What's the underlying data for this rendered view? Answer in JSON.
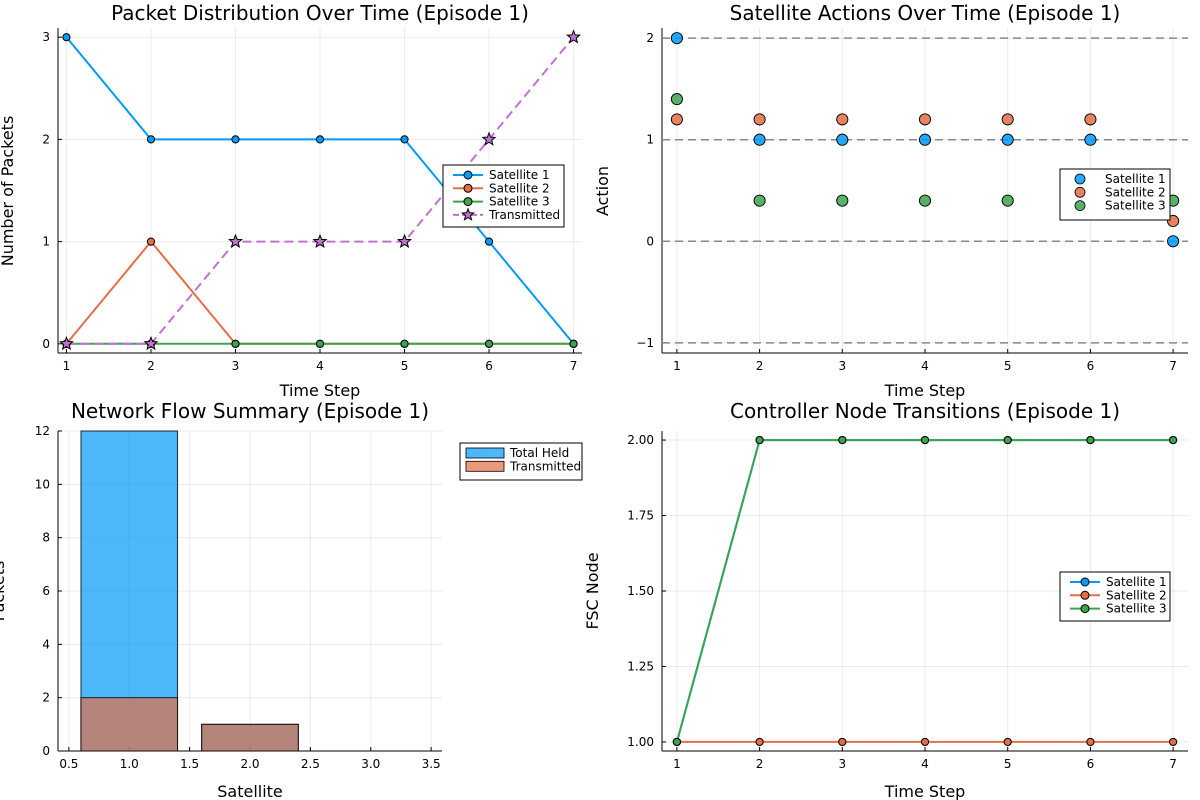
{
  "chart_data": [
    {
      "type": "line",
      "title": "Packet Distribution Over Time (Episode 1)",
      "xlabel": "Time Step",
      "ylabel": "Number of Packets",
      "x": [
        1,
        2,
        3,
        4,
        5,
        6,
        7
      ],
      "xlim": [
        0.9,
        7.1
      ],
      "ylim": [
        -0.09,
        3.09
      ],
      "xticks": [
        "1",
        "2",
        "3",
        "4",
        "5",
        "6",
        "7"
      ],
      "yticks": [
        "0",
        "1",
        "2",
        "3"
      ],
      "grid": true,
      "legend_position": "right",
      "series": [
        {
          "name": "Satellite 1",
          "values": [
            3,
            2,
            2,
            2,
            2,
            1,
            0
          ],
          "color": "#009af9",
          "marker": "circle",
          "dash": false
        },
        {
          "name": "Satellite 2",
          "values": [
            0,
            1,
            0,
            0,
            0,
            0,
            0
          ],
          "color": "#e26f46",
          "marker": "circle",
          "dash": false
        },
        {
          "name": "Satellite 3",
          "values": [
            0,
            0,
            0,
            0,
            0,
            0,
            0
          ],
          "color": "#3da44d",
          "marker": "circle",
          "dash": false
        },
        {
          "name": "Transmitted",
          "values": [
            0,
            0,
            1,
            1,
            1,
            2,
            3
          ],
          "color": "#c271d2",
          "marker": "star",
          "dash": true
        }
      ]
    },
    {
      "type": "scatter",
      "title": "Satellite Actions Over Time (Episode 1)",
      "xlabel": "Time Step",
      "ylabel": "Action",
      "xlim": [
        0.82,
        7.18
      ],
      "ylim": [
        -1.1,
        2.1
      ],
      "xticks": [
        "1",
        "2",
        "3",
        "4",
        "5",
        "6",
        "7"
      ],
      "yticks": [
        "−1",
        "0",
        "1",
        "2"
      ],
      "hlines": [
        -1,
        0,
        1,
        2
      ],
      "grid": true,
      "legend_position": "right",
      "series": [
        {
          "name": "Satellite 1",
          "color": "#009af9",
          "points": [
            [
              1,
              2
            ],
            [
              2,
              1
            ],
            [
              3,
              1
            ],
            [
              4,
              1
            ],
            [
              5,
              1
            ],
            [
              6,
              1
            ],
            [
              7,
              0
            ]
          ]
        },
        {
          "name": "Satellite 2",
          "color": "#e26f46",
          "points": [
            [
              1,
              1.2
            ],
            [
              2,
              1.2
            ],
            [
              3,
              1.2
            ],
            [
              4,
              1.2
            ],
            [
              5,
              1.2
            ],
            [
              6,
              1.2
            ],
            [
              7,
              0.2
            ]
          ]
        },
        {
          "name": "Satellite 3",
          "color": "#3da44d",
          "points": [
            [
              1,
              1.4
            ],
            [
              2,
              0.4
            ],
            [
              3,
              0.4
            ],
            [
              4,
              0.4
            ],
            [
              5,
              0.4
            ],
            [
              7,
              0.4
            ]
          ]
        }
      ]
    },
    {
      "type": "bar",
      "title": "Network Flow Summary (Episode 1)",
      "xlabel": "Satellite",
      "ylabel": "Packets",
      "xlim": [
        0.41,
        3.59
      ],
      "ylim": [
        0,
        12
      ],
      "xticks": [
        "0.5",
        "1.0",
        "1.5",
        "2.0",
        "2.5",
        "3.0",
        "3.5"
      ],
      "yticks": [
        "0",
        "2",
        "4",
        "6",
        "8",
        "10",
        "12"
      ],
      "grid": true,
      "legend_position": "top-right",
      "x": [
        1,
        2,
        3
      ],
      "series": [
        {
          "name": "Total Held",
          "values": [
            12,
            1,
            0
          ],
          "color": "#009af9"
        },
        {
          "name": "Transmitted",
          "values": [
            2,
            1,
            0
          ],
          "color": "#e26f46"
        }
      ]
    },
    {
      "type": "line",
      "title": "Controller Node Transitions (Episode 1)",
      "xlabel": "Time Step",
      "ylabel": "FSC Node",
      "x": [
        1,
        2,
        3,
        4,
        5,
        6,
        7
      ],
      "xlim": [
        0.82,
        7.18
      ],
      "ylim": [
        0.97,
        2.03
      ],
      "xticks": [
        "1",
        "2",
        "3",
        "4",
        "5",
        "6",
        "7"
      ],
      "yticks": [
        "1.00",
        "1.25",
        "1.50",
        "1.75",
        "2.00"
      ],
      "grid": true,
      "legend_position": "right",
      "series": [
        {
          "name": "Satellite 1",
          "values": [
            1,
            2,
            2,
            2,
            2,
            2,
            2
          ],
          "color": "#009af9"
        },
        {
          "name": "Satellite 2",
          "values": [
            1,
            1,
            1,
            1,
            1,
            1,
            1
          ],
          "color": "#e26f46"
        },
        {
          "name": "Satellite 3",
          "values": [
            1,
            2,
            2,
            2,
            2,
            2,
            2
          ],
          "color": "#3da44d"
        }
      ]
    }
  ]
}
